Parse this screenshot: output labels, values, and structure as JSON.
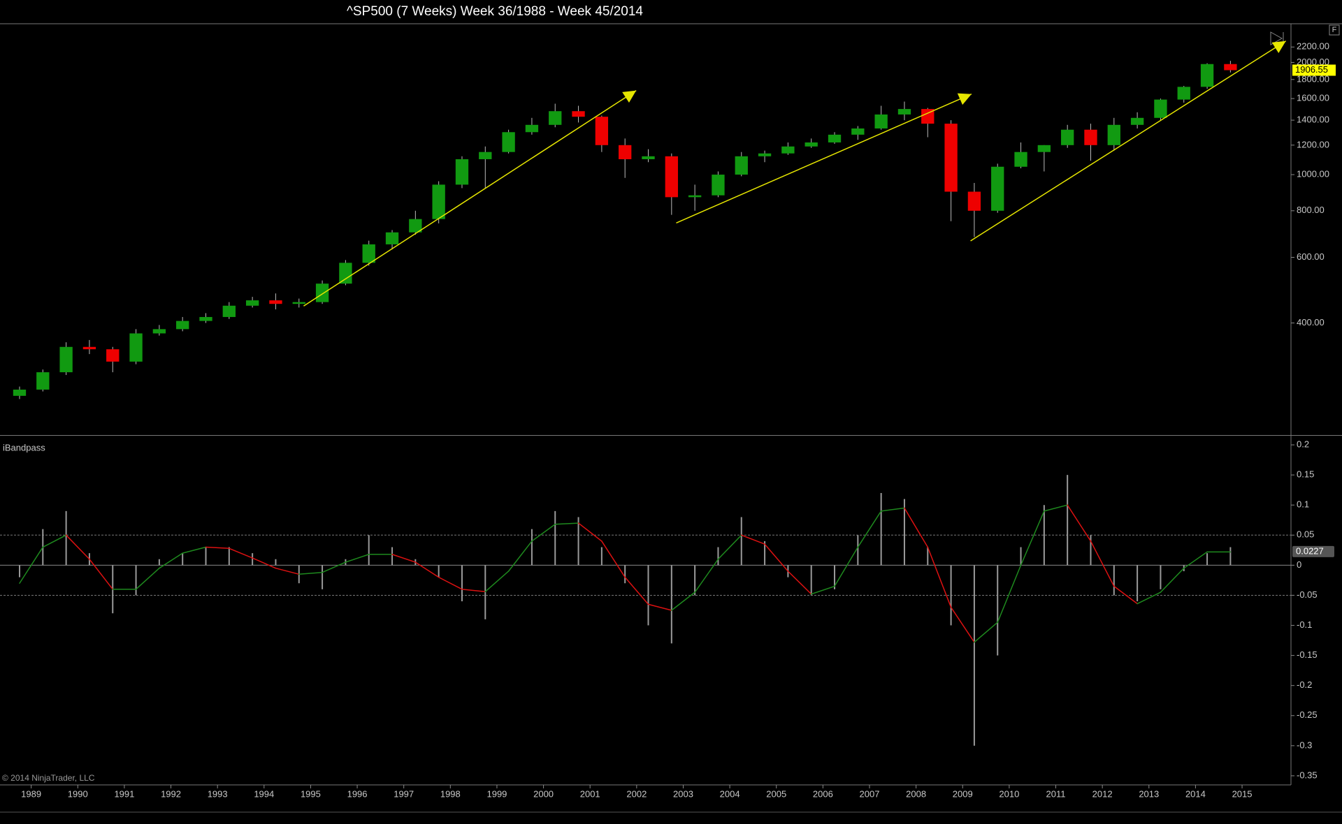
{
  "chart_data": [
    {
      "type": "candlestick",
      "title": "^SP500 (7 Weeks)  Week 36/1988 - Week 45/2014",
      "x": [
        1988.75,
        1989.25,
        1989.75,
        1990.25,
        1990.75,
        1991.25,
        1991.75,
        1992.25,
        1992.75,
        1993.25,
        1993.75,
        1994.25,
        1994.75,
        1995.25,
        1995.75,
        1996.25,
        1996.75,
        1997.25,
        1997.75,
        1998.25,
        1998.75,
        1999.25,
        1999.75,
        2000.25,
        2000.75,
        2001.25,
        2001.75,
        2002.25,
        2002.75,
        2003.25,
        2003.75,
        2004.25,
        2004.75,
        2005.25,
        2005.75,
        2006.25,
        2006.75,
        2007.25,
        2007.75,
        2008.25,
        2008.75,
        2009.25,
        2009.75,
        2010.25,
        2010.75,
        2011.25,
        2011.75,
        2012.25,
        2012.75,
        2013.25,
        2013.75,
        2014.25,
        2014.75
      ],
      "candles": [
        [
          255,
          270,
          250,
          265
        ],
        [
          265,
          300,
          262,
          295
        ],
        [
          295,
          355,
          290,
          345
        ],
        [
          345,
          360,
          330,
          340
        ],
        [
          340,
          345,
          295,
          315
        ],
        [
          315,
          385,
          310,
          375
        ],
        [
          375,
          395,
          370,
          385
        ],
        [
          385,
          415,
          380,
          405
        ],
        [
          405,
          425,
          400,
          415
        ],
        [
          415,
          455,
          410,
          445
        ],
        [
          445,
          470,
          440,
          460
        ],
        [
          460,
          480,
          435,
          450
        ],
        [
          450,
          465,
          440,
          455
        ],
        [
          455,
          520,
          450,
          510
        ],
        [
          510,
          590,
          505,
          580
        ],
        [
          580,
          665,
          570,
          650
        ],
        [
          650,
          710,
          630,
          700
        ],
        [
          700,
          800,
          690,
          760
        ],
        [
          760,
          960,
          740,
          940
        ],
        [
          940,
          1120,
          920,
          1100
        ],
        [
          1100,
          1190,
          920,
          1150
        ],
        [
          1150,
          1320,
          1140,
          1300
        ],
        [
          1300,
          1420,
          1280,
          1360
        ],
        [
          1360,
          1550,
          1340,
          1480
        ],
        [
          1480,
          1530,
          1380,
          1430
        ],
        [
          1430,
          1440,
          1150,
          1200
        ],
        [
          1200,
          1250,
          980,
          1100
        ],
        [
          1100,
          1170,
          1080,
          1120
        ],
        [
          1120,
          1140,
          780,
          870
        ],
        [
          870,
          940,
          800,
          880
        ],
        [
          880,
          1020,
          870,
          1000
        ],
        [
          1000,
          1150,
          990,
          1120
        ],
        [
          1120,
          1160,
          1080,
          1140
        ],
        [
          1140,
          1220,
          1130,
          1190
        ],
        [
          1190,
          1250,
          1180,
          1220
        ],
        [
          1220,
          1300,
          1210,
          1280
        ],
        [
          1280,
          1350,
          1240,
          1330
        ],
        [
          1330,
          1530,
          1320,
          1450
        ],
        [
          1450,
          1570,
          1400,
          1500
        ],
        [
          1500,
          1510,
          1260,
          1370
        ],
        [
          1370,
          1400,
          750,
          900
        ],
        [
          900,
          950,
          680,
          800
        ],
        [
          800,
          1070,
          790,
          1050
        ],
        [
          1050,
          1220,
          1040,
          1150
        ],
        [
          1150,
          1200,
          1020,
          1200
        ],
        [
          1200,
          1360,
          1180,
          1320
        ],
        [
          1320,
          1370,
          1090,
          1200
        ],
        [
          1200,
          1420,
          1160,
          1360
        ],
        [
          1360,
          1470,
          1330,
          1420
        ],
        [
          1420,
          1600,
          1400,
          1590
        ],
        [
          1590,
          1730,
          1560,
          1720
        ],
        [
          1720,
          1990,
          1700,
          1980
        ],
        [
          1980,
          2020,
          1880,
          1906.55
        ]
      ],
      "up_color": "#119a11",
      "down_color": "#ee0000",
      "wick_color": "#bbbbbb",
      "log_scale": true,
      "xlim": [
        1988.33,
        2016.05
      ],
      "xticks": [
        1989,
        1990,
        1991,
        1992,
        1993,
        1994,
        1995,
        1996,
        1997,
        1998,
        1999,
        2000,
        2001,
        2002,
        2003,
        2004,
        2005,
        2006,
        2007,
        2008,
        2009,
        2010,
        2011,
        2012,
        2013,
        2014,
        2015
      ],
      "ylim": [
        201,
        2540
      ],
      "yticks": [
        {
          "value": 2200,
          "label": "2200.00"
        },
        {
          "value": 2000,
          "label": "2000.00"
        },
        {
          "value": 1800,
          "label": "1800.00"
        },
        {
          "value": 1600,
          "label": "1600.00"
        },
        {
          "value": 1400,
          "label": "1400.00"
        },
        {
          "value": 1200,
          "label": "1200.00"
        },
        {
          "value": 1000,
          "label": "1000.00"
        },
        {
          "value": 800,
          "label": "800.00"
        },
        {
          "value": 600,
          "label": "600.00"
        },
        {
          "value": 400,
          "label": "400.00"
        }
      ],
      "trend_color": "#e6e600",
      "trend_lines": [
        {
          "x": [
            1994.85,
            2001.99
          ],
          "y": [
            444,
            1681
          ]
        },
        {
          "x": [
            2002.85,
            2009.19
          ],
          "y": [
            742,
            1645
          ]
        },
        {
          "x": [
            2009.17,
            2015.94
          ],
          "y": [
            664,
            2283
          ]
        }
      ],
      "last_label_color": "#ffff00"
    },
    {
      "type": "bandpass",
      "label": "iBandpass",
      "histogram": {
        "color": "#9a9a9a",
        "values": [
          -0.02,
          0.06,
          0.09,
          0.02,
          -0.08,
          -0.05,
          0.01,
          0.02,
          0.03,
          0.03,
          0.02,
          0.01,
          -0.03,
          -0.04,
          0.01,
          0.05,
          0.03,
          0.01,
          -0.02,
          -0.06,
          -0.09,
          0.0,
          0.06,
          0.09,
          0.08,
          0.03,
          -0.03,
          -0.1,
          -0.13,
          -0.05,
          0.03,
          0.08,
          0.04,
          -0.02,
          -0.05,
          -0.04,
          0.05,
          0.12,
          0.11,
          0.03,
          -0.1,
          -0.3,
          -0.15,
          0.03,
          0.1,
          0.15,
          0.05,
          -0.05,
          -0.06,
          -0.04,
          -0.01,
          0.02,
          0.03
        ]
      },
      "line": {
        "rising_color": "#1e8a1e",
        "falling_color": "#dd1111",
        "values": [
          -0.03,
          0.03,
          0.05,
          0.01,
          -0.04,
          -0.04,
          -0.005,
          0.02,
          0.03,
          0.028,
          0.012,
          -0.005,
          -0.015,
          -0.012,
          0.005,
          0.018,
          0.018,
          0.005,
          -0.02,
          -0.04,
          -0.044,
          -0.01,
          0.04,
          0.068,
          0.07,
          0.04,
          -0.02,
          -0.065,
          -0.075,
          -0.045,
          0.01,
          0.05,
          0.035,
          -0.01,
          -0.048,
          -0.035,
          0.03,
          0.09,
          0.095,
          0.03,
          -0.07,
          -0.128,
          -0.095,
          0,
          0.09,
          0.1,
          0.04,
          -0.035,
          -0.064,
          -0.045,
          -0.005,
          0.022,
          0.022
        ]
      },
      "ylim": [
        -0.364,
        0.214
      ],
      "yticks": [
        0.2,
        0.15,
        0.1,
        0.05,
        0,
        -0.05,
        -0.1,
        -0.15,
        -0.2,
        -0.25,
        -0.3,
        -0.35
      ],
      "levels": [
        0.05,
        -0.05
      ],
      "current_value": 0.0227
    }
  ],
  "copyright": "© 2014 NinjaTrader, LLC",
  "panel_button": "F"
}
